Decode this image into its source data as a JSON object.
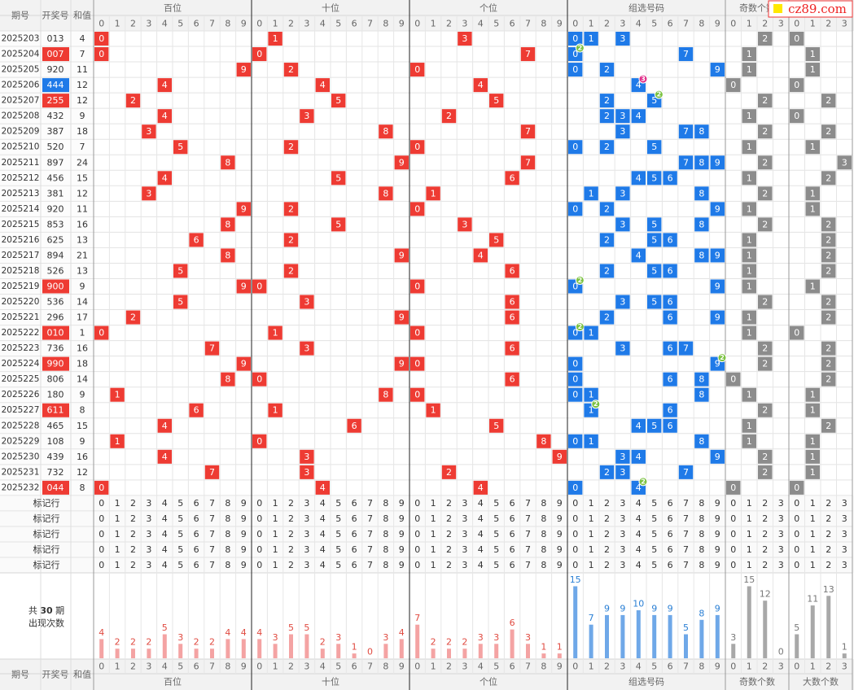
{
  "logo": "cz89.com",
  "headers": {
    "issue": "期号",
    "number": "开奖号",
    "sum": "和值"
  },
  "groups": [
    "百位",
    "十位",
    "个位",
    "组选号码",
    "奇数个数",
    "大数个数"
  ],
  "digits": [
    0,
    1,
    2,
    3,
    4,
    5,
    6,
    7,
    8,
    9
  ],
  "counts": [
    0,
    1,
    2,
    3
  ],
  "marker_label": "标记行",
  "colors": {
    "position": "#ee3b33",
    "group": "#1f7ae8",
    "count": "#8c8c8c",
    "pair": "#ee3b33",
    "triple": "#1f7ae8",
    "badge2": "#7cc242",
    "badge3": "#e0308a",
    "bar_position": "#f4a3a3",
    "bar_group": "#6fa8e8",
    "bar_count": "#a8a8a8",
    "label_position": "#e04a40",
    "label_group": "#2a7fd4",
    "label_count": "#777777"
  },
  "rows": [
    {
      "issue": "2025203",
      "number": "013",
      "sum": 4,
      "digits": [
        0,
        1,
        3
      ],
      "odd": 2,
      "big": 0
    },
    {
      "issue": "2025204",
      "number": "007",
      "sum": 7,
      "digits": [
        0,
        0,
        7
      ],
      "odd": 1,
      "big": 1,
      "repeat": 2
    },
    {
      "issue": "2025205",
      "number": "920",
      "sum": 11,
      "digits": [
        9,
        2,
        0
      ],
      "odd": 1,
      "big": 1
    },
    {
      "issue": "2025206",
      "number": "444",
      "sum": 12,
      "digits": [
        4,
        4,
        4
      ],
      "odd": 0,
      "big": 0,
      "repeat": 3
    },
    {
      "issue": "2025207",
      "number": "255",
      "sum": 12,
      "digits": [
        2,
        5,
        5
      ],
      "odd": 2,
      "big": 2,
      "repeat": 2
    },
    {
      "issue": "2025208",
      "number": "432",
      "sum": 9,
      "digits": [
        4,
        3,
        2
      ],
      "odd": 1,
      "big": 0
    },
    {
      "issue": "2025209",
      "number": "387",
      "sum": 18,
      "digits": [
        3,
        8,
        7
      ],
      "odd": 2,
      "big": 2
    },
    {
      "issue": "2025210",
      "number": "520",
      "sum": 7,
      "digits": [
        5,
        2,
        0
      ],
      "odd": 1,
      "big": 1
    },
    {
      "issue": "2025211",
      "number": "897",
      "sum": 24,
      "digits": [
        8,
        9,
        7
      ],
      "odd": 2,
      "big": 3
    },
    {
      "issue": "2025212",
      "number": "456",
      "sum": 15,
      "digits": [
        4,
        5,
        6
      ],
      "odd": 1,
      "big": 2
    },
    {
      "issue": "2025213",
      "number": "381",
      "sum": 12,
      "digits": [
        3,
        8,
        1
      ],
      "odd": 2,
      "big": 1
    },
    {
      "issue": "2025214",
      "number": "920",
      "sum": 11,
      "digits": [
        9,
        2,
        0
      ],
      "odd": 1,
      "big": 1
    },
    {
      "issue": "2025215",
      "number": "853",
      "sum": 16,
      "digits": [
        8,
        5,
        3
      ],
      "odd": 2,
      "big": 2
    },
    {
      "issue": "2025216",
      "number": "625",
      "sum": 13,
      "digits": [
        6,
        2,
        5
      ],
      "odd": 1,
      "big": 2
    },
    {
      "issue": "2025217",
      "number": "894",
      "sum": 21,
      "digits": [
        8,
        9,
        4
      ],
      "odd": 1,
      "big": 2
    },
    {
      "issue": "2025218",
      "number": "526",
      "sum": 13,
      "digits": [
        5,
        2,
        6
      ],
      "odd": 1,
      "big": 2
    },
    {
      "issue": "2025219",
      "number": "900",
      "sum": 9,
      "digits": [
        9,
        0,
        0
      ],
      "odd": 1,
      "big": 1,
      "repeat": 2
    },
    {
      "issue": "2025220",
      "number": "536",
      "sum": 14,
      "digits": [
        5,
        3,
        6
      ],
      "odd": 2,
      "big": 2
    },
    {
      "issue": "2025221",
      "number": "296",
      "sum": 17,
      "digits": [
        2,
        9,
        6
      ],
      "odd": 1,
      "big": 2
    },
    {
      "issue": "2025222",
      "number": "010",
      "sum": 1,
      "digits": [
        0,
        1,
        0
      ],
      "odd": 1,
      "big": 0,
      "repeat": 2
    },
    {
      "issue": "2025223",
      "number": "736",
      "sum": 16,
      "digits": [
        7,
        3,
        6
      ],
      "odd": 2,
      "big": 2
    },
    {
      "issue": "2025224",
      "number": "990",
      "sum": 18,
      "digits": [
        9,
        9,
        0
      ],
      "odd": 2,
      "big": 2,
      "repeat": 2
    },
    {
      "issue": "2025225",
      "number": "806",
      "sum": 14,
      "digits": [
        8,
        0,
        6
      ],
      "odd": 0,
      "big": 2
    },
    {
      "issue": "2025226",
      "number": "180",
      "sum": 9,
      "digits": [
        1,
        8,
        0
      ],
      "odd": 1,
      "big": 1
    },
    {
      "issue": "2025227",
      "number": "611",
      "sum": 8,
      "digits": [
        6,
        1,
        1
      ],
      "odd": 2,
      "big": 1,
      "repeat": 2
    },
    {
      "issue": "2025228",
      "number": "465",
      "sum": 15,
      "digits": [
        4,
        6,
        5
      ],
      "odd": 1,
      "big": 2
    },
    {
      "issue": "2025229",
      "number": "108",
      "sum": 9,
      "digits": [
        1,
        0,
        8
      ],
      "odd": 1,
      "big": 1
    },
    {
      "issue": "2025230",
      "number": "439",
      "sum": 16,
      "digits": [
        4,
        3,
        9
      ],
      "odd": 2,
      "big": 1
    },
    {
      "issue": "2025231",
      "number": "732",
      "sum": 12,
      "digits": [
        7,
        3,
        2
      ],
      "odd": 2,
      "big": 1
    },
    {
      "issue": "2025232",
      "number": "044",
      "sum": 8,
      "digits": [
        0,
        4,
        4
      ],
      "odd": 0,
      "big": 0,
      "repeat": 2
    }
  ],
  "stats": {
    "prefix": "共",
    "periods": 30,
    "suffix": "期",
    "label": "出现次数",
    "occurrences": [
      [
        4,
        2,
        2,
        2,
        5,
        3,
        2,
        2,
        4,
        4
      ],
      [
        4,
        3,
        5,
        5,
        2,
        3,
        1,
        0,
        3,
        4
      ],
      [
        7,
        2,
        2,
        2,
        3,
        3,
        6,
        3,
        1,
        1
      ],
      [
        15,
        7,
        9,
        9,
        10,
        9,
        9,
        5,
        8,
        9
      ],
      [
        3,
        15,
        12,
        0
      ],
      [
        5,
        11,
        13,
        1
      ]
    ]
  }
}
